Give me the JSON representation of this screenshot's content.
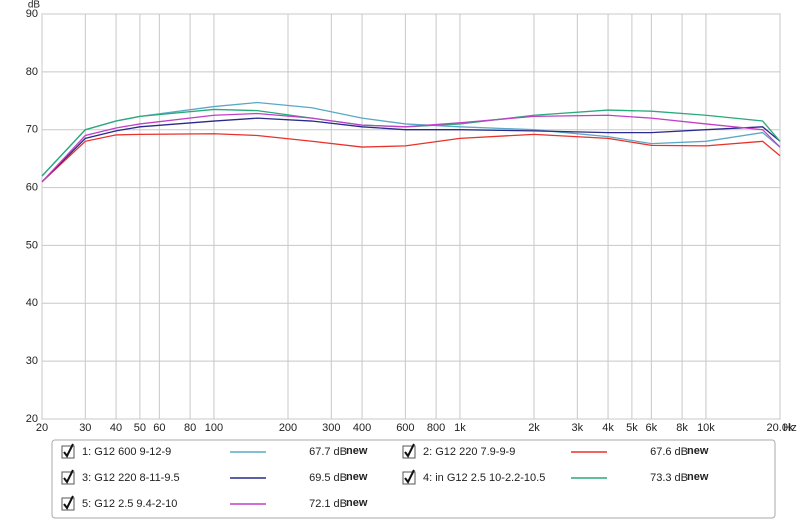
{
  "chart_data": {
    "type": "line",
    "y_label": "dB",
    "x_label": "Hz",
    "xscale": "log",
    "grid": true,
    "x": [
      20,
      30,
      40,
      50,
      100,
      150,
      250,
      400,
      600,
      1000,
      2000,
      4000,
      6000,
      10000,
      17000,
      20000
    ],
    "xlim": [
      20,
      20000
    ],
    "xticks": [
      20,
      30,
      40,
      50,
      60,
      80,
      100,
      200,
      300,
      400,
      600,
      800,
      {
        "value": 1000,
        "label": "1k"
      },
      {
        "value": 2000,
        "label": "2k"
      },
      {
        "value": 3000,
        "label": "3k"
      },
      {
        "value": 4000,
        "label": "4k"
      },
      {
        "value": 5000,
        "label": "5k"
      },
      {
        "value": 6000,
        "label": "6k"
      },
      {
        "value": 8000,
        "label": "8k"
      },
      {
        "value": 10000,
        "label": "10k"
      },
      {
        "value": 20000,
        "label": "20.0k"
      }
    ],
    "ylim": [
      20,
      90
    ],
    "yticks": [
      20,
      30,
      40,
      50,
      60,
      70,
      80,
      90
    ],
    "series": [
      {
        "name": "1: G12 600 9-12-9",
        "color": "#5ba8c4",
        "level": "67.7 dB",
        "tag": "new",
        "values": [
          62,
          70,
          71.5,
          72.3,
          74,
          74.7,
          73.8,
          72,
          71,
          70.5,
          70,
          68.8,
          67.6,
          68,
          69.5,
          67
        ]
      },
      {
        "name": "2: G12 220 7.9-9-9",
        "color": "#e8322c",
        "level": "67.6 dB",
        "tag": "new",
        "values": [
          61,
          68,
          69.1,
          69.2,
          69.3,
          69,
          68,
          67,
          67.2,
          68.5,
          69.2,
          68.5,
          67.3,
          67.2,
          68,
          65.5
        ]
      },
      {
        "name": "3: G12 220 8-11-9.5",
        "color": "#2a2a8a",
        "level": "69.5 dB",
        "tag": "new",
        "values": [
          61,
          68.5,
          69.8,
          70.5,
          71.5,
          72,
          71.5,
          70.5,
          70,
          70,
          69.8,
          69.5,
          69.5,
          70,
          70.5,
          68
        ]
      },
      {
        "name": "4: in G12 2.5 10-2.2-10.5",
        "color": "#2aaa7a",
        "level": "73.3 dB",
        "tag": "new",
        "values": [
          62,
          70,
          71.5,
          72.3,
          73.5,
          73.3,
          72,
          70.8,
          70.5,
          71,
          72.5,
          73.4,
          73.2,
          72.5,
          71.5,
          68
        ]
      },
      {
        "name": "5: G12 2.5 9.4-2-10",
        "color": "#c040c8",
        "level": "72.1 dB",
        "tag": "new",
        "values": [
          61,
          69,
          70.3,
          71,
          72.5,
          72.8,
          72,
          70.8,
          70.5,
          71.2,
          72.3,
          72.5,
          72,
          71,
          70,
          67
        ]
      }
    ]
  }
}
